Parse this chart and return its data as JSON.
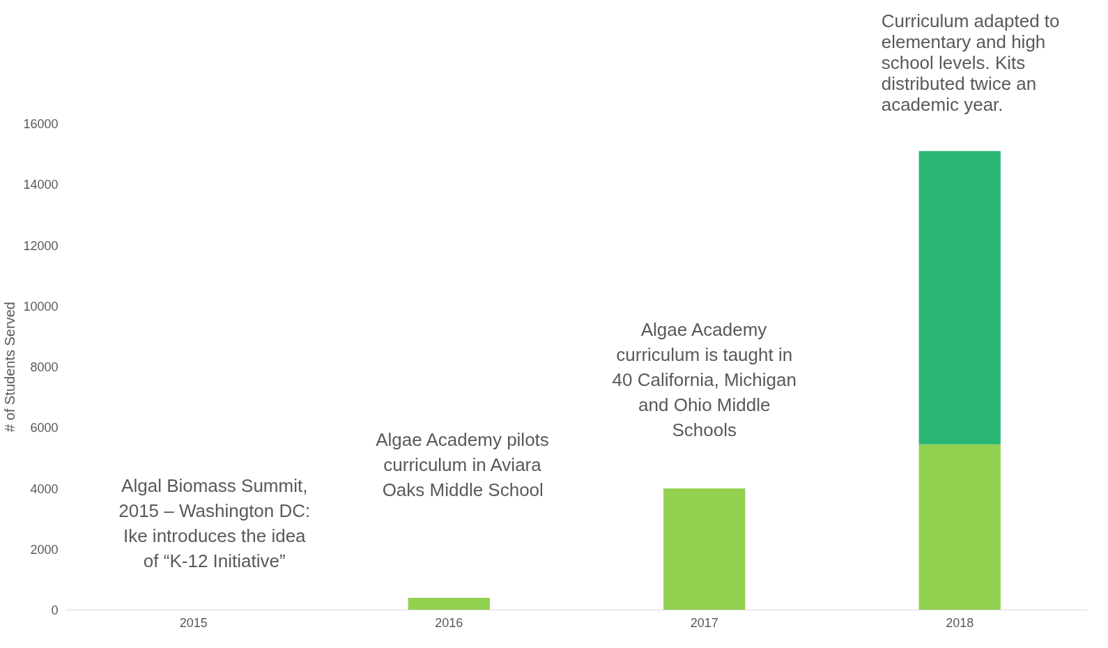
{
  "chart_data": {
    "type": "bar",
    "stacked": true,
    "ylabel": "# of Students Served",
    "categories": [
      "2015",
      "2016",
      "2017",
      "2018"
    ],
    "series": [
      {
        "color": "#92d050",
        "values": [
          0,
          400,
          4000,
          5450
        ]
      },
      {
        "color": "#2ab673",
        "values": [
          0,
          0,
          0,
          9650
        ]
      }
    ],
    "ylim": [
      0,
      16000
    ],
    "yticks": [
      0,
      2000,
      4000,
      6000,
      8000,
      10000,
      12000,
      14000,
      16000
    ],
    "grid": false,
    "annotations": [
      "Algal Biomass Summit,\n2015 – Washington DC:\nIke introduces the idea\nof “K-12 Initiative”",
      "Algae Academy pilots\ncurriculum in Aviara\nOaks Middle School",
      "Algae Academy\ncurriculum is taught in\n40 California, Michigan\nand Ohio Middle\nSchools",
      "Curriculum adapted to\nelementary and high\nschool levels. Kits\ndistributed twice an\nacademic year."
    ]
  }
}
